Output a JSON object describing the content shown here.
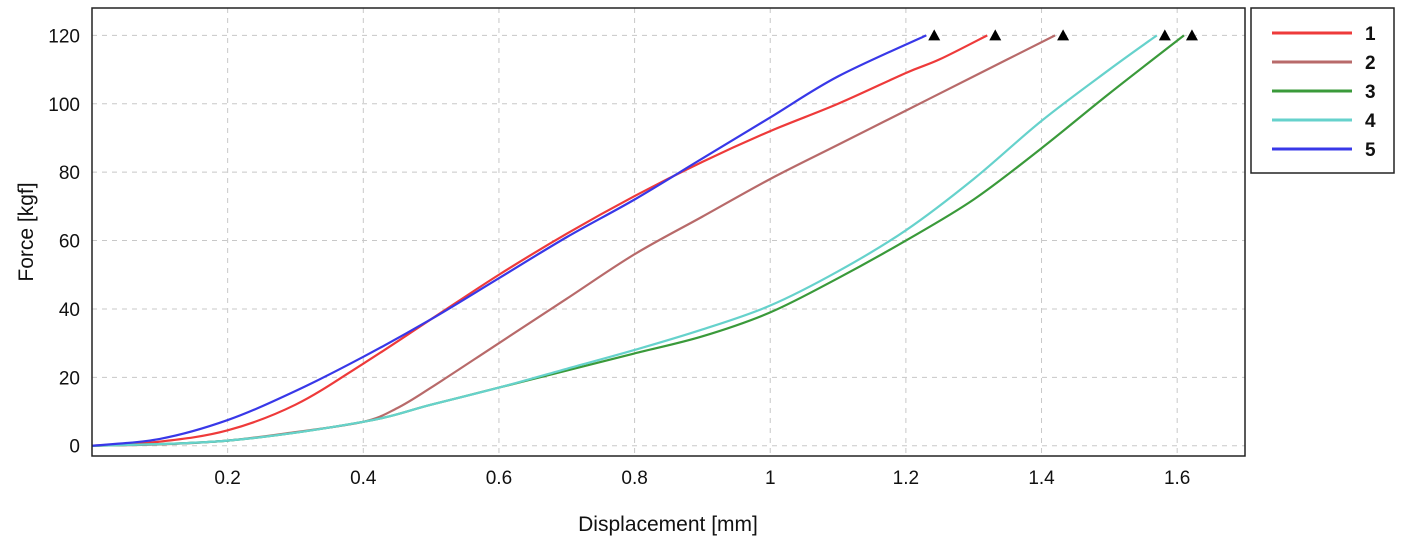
{
  "chart_data": {
    "type": "line",
    "title": "",
    "xlabel": "Displacement [mm]",
    "ylabel": "Force [kgf]",
    "xlim": [
      0,
      1.7
    ],
    "ylim": [
      -3,
      128
    ],
    "xticks": [
      0.2,
      0.4,
      0.6,
      0.8,
      1.0,
      1.2,
      1.4,
      1.6
    ],
    "xtick_labels": [
      "0.2",
      "0.4",
      "0.6",
      "0.8",
      "1",
      "1.2",
      "1.4",
      "1.6"
    ],
    "yticks": [
      0,
      20,
      40,
      60,
      80,
      100,
      120
    ],
    "ytick_labels": [
      "0",
      "20",
      "40",
      "60",
      "80",
      "100",
      "120"
    ],
    "grid": true,
    "legend_position": "right",
    "end_marker": "triangle",
    "series": [
      {
        "name": "1",
        "color": "#ee3a3a",
        "points": [
          [
            0,
            0
          ],
          [
            0.1,
            1.2
          ],
          [
            0.2,
            4.5
          ],
          [
            0.3,
            12
          ],
          [
            0.4,
            24
          ],
          [
            0.5,
            37
          ],
          [
            0.6,
            50
          ],
          [
            0.7,
            62
          ],
          [
            0.8,
            73
          ],
          [
            0.9,
            83
          ],
          [
            1.0,
            92
          ],
          [
            1.1,
            100
          ],
          [
            1.2,
            109
          ],
          [
            1.25,
            113
          ],
          [
            1.32,
            120
          ]
        ]
      },
      {
        "name": "2",
        "color": "#b86a6a",
        "points": [
          [
            0,
            0
          ],
          [
            0.1,
            0.4
          ],
          [
            0.2,
            1.5
          ],
          [
            0.3,
            4
          ],
          [
            0.4,
            7
          ],
          [
            0.45,
            11
          ],
          [
            0.5,
            17
          ],
          [
            0.6,
            30
          ],
          [
            0.7,
            43
          ],
          [
            0.8,
            56
          ],
          [
            0.9,
            67
          ],
          [
            1.0,
            78
          ],
          [
            1.1,
            88
          ],
          [
            1.2,
            98
          ],
          [
            1.3,
            108
          ],
          [
            1.42,
            120
          ]
        ]
      },
      {
        "name": "3",
        "color": "#3a9a3a",
        "points": [
          [
            0,
            0
          ],
          [
            0.2,
            1.5
          ],
          [
            0.4,
            7
          ],
          [
            0.5,
            12
          ],
          [
            0.6,
            17
          ],
          [
            0.7,
            22
          ],
          [
            0.8,
            27
          ],
          [
            0.9,
            32
          ],
          [
            1.0,
            39
          ],
          [
            1.1,
            49
          ],
          [
            1.2,
            60
          ],
          [
            1.3,
            72
          ],
          [
            1.4,
            87
          ],
          [
            1.5,
            103
          ],
          [
            1.61,
            120
          ]
        ]
      },
      {
        "name": "4",
        "color": "#66d2cc",
        "points": [
          [
            0,
            0
          ],
          [
            0.2,
            1.5
          ],
          [
            0.4,
            7
          ],
          [
            0.5,
            12
          ],
          [
            0.6,
            17
          ],
          [
            0.7,
            22.5
          ],
          [
            0.8,
            28
          ],
          [
            0.9,
            34
          ],
          [
            1.0,
            41
          ],
          [
            1.1,
            51
          ],
          [
            1.2,
            63
          ],
          [
            1.3,
            78
          ],
          [
            1.4,
            95
          ],
          [
            1.5,
            110
          ],
          [
            1.57,
            120
          ]
        ]
      },
      {
        "name": "5",
        "color": "#3838e8",
        "points": [
          [
            0,
            0
          ],
          [
            0.1,
            2
          ],
          [
            0.2,
            7.5
          ],
          [
            0.3,
            16
          ],
          [
            0.4,
            26
          ],
          [
            0.5,
            37
          ],
          [
            0.6,
            49
          ],
          [
            0.7,
            61
          ],
          [
            0.8,
            72
          ],
          [
            0.9,
            84
          ],
          [
            1.0,
            96
          ],
          [
            1.1,
            108
          ],
          [
            1.23,
            120
          ]
        ]
      }
    ]
  }
}
